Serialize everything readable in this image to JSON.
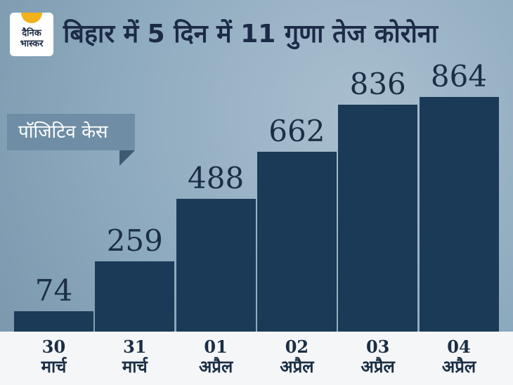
{
  "logo": [
    "दैनिक",
    "भास्कर"
  ],
  "chart_data": {
    "type": "bar",
    "title": "बिहार में 5 दिन में 11 गुणा तेज कोरोना",
    "subtitle": "पॉजिटिव केस",
    "categories": [
      "30\nमार्च",
      "31\nमार्च",
      "01\nअप्रैल",
      "02\nअप्रैल",
      "03\nअप्रैल",
      "04\nअप्रैल"
    ],
    "values": [
      74,
      259,
      488,
      662,
      836,
      864
    ],
    "color": "#1b3a57"
  }
}
